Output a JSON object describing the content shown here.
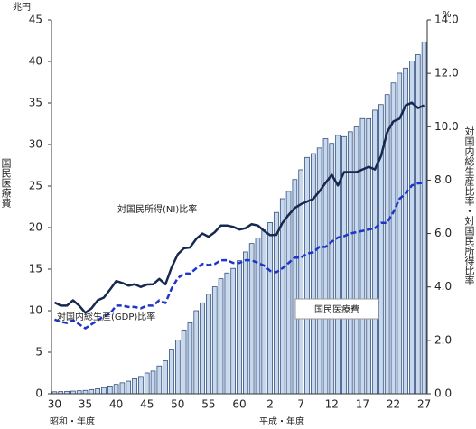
{
  "chart_data": {
    "type": "bar-line",
    "ylabel": "国民医療費",
    "yunit": "兆円",
    "y2unit": "%",
    "y2label": "対国内総生産比率・対国民所得比率",
    "xlabel_left": "昭和・年度",
    "xlabel_right": "平成・年度",
    "categories": [
      "30",
      null,
      null,
      null,
      null,
      "35",
      null,
      null,
      null,
      null,
      "40",
      null,
      null,
      null,
      null,
      "45",
      null,
      null,
      null,
      null,
      "50",
      null,
      null,
      null,
      null,
      "55",
      null,
      null,
      null,
      null,
      "60",
      null,
      null,
      null,
      null,
      "2",
      null,
      null,
      null,
      null,
      "7",
      null,
      null,
      null,
      null,
      "12",
      null,
      null,
      null,
      null,
      "17",
      null,
      null,
      null,
      null,
      "22",
      null,
      null,
      null,
      null,
      "27"
    ],
    "series": [
      {
        "name": "国民医療費",
        "type": "bar",
        "color": "#c6d9ef",
        "stroke": "#1f3a6b",
        "values": [
          0.24,
          0.26,
          0.29,
          0.32,
          0.36,
          0.41,
          0.51,
          0.61,
          0.74,
          0.94,
          1.12,
          1.32,
          1.52,
          1.81,
          2.08,
          2.5,
          2.73,
          3.35,
          3.96,
          5.38,
          6.48,
          7.68,
          8.56,
          10.0,
          10.95,
          11.98,
          12.87,
          13.85,
          14.54,
          15.09,
          16.02,
          17.07,
          18.08,
          18.75,
          19.73,
          20.61,
          21.83,
          23.48,
          24.36,
          25.79,
          26.96,
          28.45,
          28.91,
          29.58,
          30.7,
          30.14,
          31.1,
          30.95,
          31.54,
          32.11,
          33.13,
          33.12,
          34.14,
          34.81,
          36.01,
          37.42,
          38.59,
          39.21,
          40.06,
          40.81,
          42.36
        ]
      },
      {
        "name": "対国民所得(NI)比率",
        "type": "line",
        "axis": "y2",
        "color": "#17284f",
        "line_style": "solid",
        "values": [
          3.42,
          3.3,
          3.3,
          3.5,
          3.3,
          3.03,
          3.2,
          3.5,
          3.6,
          3.9,
          4.22,
          4.15,
          4.05,
          4.1,
          4.0,
          4.09,
          4.1,
          4.3,
          4.1,
          4.73,
          5.22,
          5.45,
          5.48,
          5.8,
          6.0,
          5.88,
          6.05,
          6.3,
          6.3,
          6.25,
          6.15,
          6.2,
          6.35,
          6.3,
          6.1,
          5.94,
          5.95,
          6.4,
          6.7,
          6.96,
          7.1,
          7.2,
          7.3,
          7.58,
          7.9,
          8.2,
          7.8,
          8.3,
          8.3,
          8.3,
          8.4,
          8.5,
          8.4,
          8.9,
          9.8,
          10.2,
          10.3,
          10.8,
          10.9,
          10.7,
          10.8
        ]
      },
      {
        "name": "対国内総生産(GDP)比率",
        "type": "line",
        "axis": "y2",
        "color": "#1f35c8",
        "line_style": "dashed",
        "values": [
          2.78,
          2.7,
          2.65,
          2.75,
          2.6,
          2.45,
          2.6,
          2.75,
          2.9,
          3.0,
          3.3,
          3.3,
          3.25,
          3.25,
          3.2,
          3.3,
          3.3,
          3.5,
          3.4,
          3.94,
          4.33,
          4.5,
          4.5,
          4.7,
          4.86,
          4.82,
          4.86,
          5.0,
          5.0,
          4.9,
          4.9,
          5.0,
          5.0,
          4.9,
          4.8,
          4.6,
          4.55,
          4.7,
          4.9,
          5.1,
          5.1,
          5.25,
          5.3,
          5.5,
          5.5,
          5.7,
          5.85,
          5.9,
          6.0,
          6.05,
          6.1,
          6.15,
          6.2,
          6.4,
          6.4,
          6.8,
          7.3,
          7.5,
          7.8,
          7.88,
          7.9
        ]
      }
    ],
    "ylim": [
      0,
      45
    ],
    "yticks": [
      0,
      5,
      10,
      15,
      20,
      25,
      30,
      35,
      40,
      45
    ],
    "y2lim": [
      0,
      14
    ],
    "y2ticks": [
      {
        "value": 0,
        "label": "0.0"
      },
      {
        "value": 2,
        "label": "2.0"
      },
      {
        "value": 4,
        "label": "4.0"
      },
      {
        "value": 6,
        "label": "6.0"
      },
      {
        "value": 8,
        "label": "8.0"
      },
      {
        "value": 10,
        "label": "10.0"
      },
      {
        "value": 12,
        "label": "12.0"
      },
      {
        "value": 14,
        "label": "14.0"
      }
    ]
  }
}
